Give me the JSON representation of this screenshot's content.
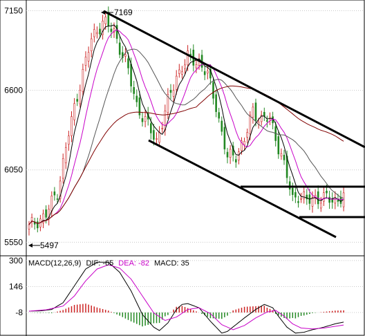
{
  "chart_data": [
    {
      "type": "candlestick",
      "y_ticks": [
        5550,
        6050,
        6600,
        7150
      ],
      "y_tick_labels": [
        "5550",
        "6050",
        "6600",
        "7150"
      ],
      "ylim": [
        5480,
        7200
      ],
      "annotations": [
        {
          "text": "7169",
          "bar": 26,
          "value": 7169
        },
        {
          "text": "5497",
          "bar": 0,
          "value": 5497
        }
      ],
      "close_anchors": [
        [
          0,
          5650
        ],
        [
          3,
          5700
        ],
        [
          6,
          5740
        ],
        [
          10,
          5900
        ],
        [
          14,
          6300
        ],
        [
          18,
          6650
        ],
        [
          22,
          6950
        ],
        [
          26,
          7080
        ],
        [
          30,
          7000
        ],
        [
          34,
          6800
        ],
        [
          38,
          6500
        ],
        [
          42,
          6350
        ],
        [
          45,
          6250
        ],
        [
          48,
          6450
        ],
        [
          52,
          6700
        ],
        [
          56,
          6820
        ],
        [
          60,
          6800
        ],
        [
          63,
          6700
        ],
        [
          66,
          6500
        ],
        [
          68,
          6300
        ],
        [
          70,
          6130
        ],
        [
          73,
          6160
        ],
        [
          76,
          6250
        ],
        [
          79,
          6460
        ],
        [
          82,
          6400
        ],
        [
          85,
          6400
        ],
        [
          87,
          6280
        ],
        [
          89,
          6150
        ],
        [
          91,
          6000
        ],
        [
          93,
          5850
        ],
        [
          95,
          5880
        ],
        [
          98,
          5830
        ],
        [
          101,
          5860
        ],
        [
          104,
          5850
        ],
        [
          108,
          5840
        ],
        [
          111,
          5870
        ]
      ],
      "colors": {
        "up": "#cc2222",
        "down": "#228822",
        "grid": "#c8c8c8",
        "ma5": "#000000",
        "ma10": "#c800c8",
        "ma20": "#555555",
        "ma60": "#800000"
      },
      "trend_lines": [
        "descending channel upper",
        "descending channel lower",
        "support",
        "support"
      ]
    },
    {
      "type": "macd",
      "title": "MACD(12,26,9)",
      "dif_label": "DIF:",
      "dif_value": "-65",
      "dea_label": "DEA:",
      "dea_value": "-82",
      "macd_label": "MACD:",
      "macd_value": "35",
      "y_ticks": [
        -8,
        146,
        300
      ],
      "y_tick_labels": [
        "-8",
        "146",
        "300"
      ],
      "ylim": [
        -135,
        320
      ],
      "dif_anchors": [
        [
          0,
          0
        ],
        [
          4,
          2
        ],
        [
          8,
          10
        ],
        [
          12,
          50
        ],
        [
          16,
          150
        ],
        [
          20,
          250
        ],
        [
          24,
          290
        ],
        [
          28,
          290
        ],
        [
          32,
          230
        ],
        [
          36,
          120
        ],
        [
          40,
          -20
        ],
        [
          44,
          -95
        ],
        [
          46,
          -115
        ],
        [
          49,
          -70
        ],
        [
          52,
          10
        ],
        [
          54,
          40
        ],
        [
          56,
          45
        ],
        [
          60,
          20
        ],
        [
          64,
          -60
        ],
        [
          68,
          -130
        ],
        [
          70,
          -120
        ],
        [
          73,
          -80
        ],
        [
          76,
          -40
        ],
        [
          80,
          10
        ],
        [
          83,
          40
        ],
        [
          86,
          20
        ],
        [
          88,
          -30
        ],
        [
          91,
          -95
        ],
        [
          94,
          -130
        ],
        [
          97,
          -125
        ],
        [
          100,
          -110
        ],
        [
          104,
          -95
        ],
        [
          108,
          -75
        ],
        [
          111,
          -65
        ]
      ],
      "dea_anchors": [
        [
          0,
          0
        ],
        [
          6,
          8
        ],
        [
          12,
          30
        ],
        [
          16,
          90
        ],
        [
          20,
          180
        ],
        [
          24,
          250
        ],
        [
          28,
          275
        ],
        [
          32,
          255
        ],
        [
          36,
          190
        ],
        [
          40,
          90
        ],
        [
          44,
          -10
        ],
        [
          48,
          -55
        ],
        [
          52,
          -35
        ],
        [
          56,
          10
        ],
        [
          60,
          20
        ],
        [
          64,
          -15
        ],
        [
          68,
          -80
        ],
        [
          72,
          -110
        ],
        [
          76,
          -85
        ],
        [
          80,
          -40
        ],
        [
          84,
          -5
        ],
        [
          87,
          5
        ],
        [
          90,
          -30
        ],
        [
          93,
          -75
        ],
        [
          96,
          -100
        ],
        [
          100,
          -105
        ],
        [
          104,
          -100
        ],
        [
          108,
          -90
        ],
        [
          111,
          -82
        ]
      ]
    }
  ]
}
